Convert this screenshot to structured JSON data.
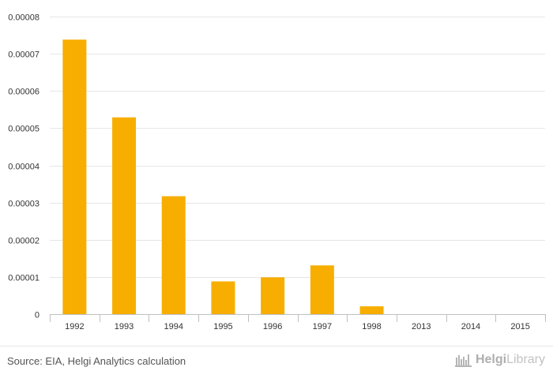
{
  "chart_data": {
    "type": "bar",
    "title": "",
    "xlabel": "",
    "ylabel": "",
    "categories": [
      "1992",
      "1993",
      "1994",
      "1995",
      "1996",
      "1997",
      "1998",
      "2013",
      "2014",
      "2015"
    ],
    "values": [
      7.38e-05,
      5.29e-05,
      3.17e-05,
      8.8e-06,
      9.9e-06,
      1.31e-05,
      2.1e-06,
      0,
      0,
      0
    ],
    "ylim": [
      0,
      8e-05
    ],
    "yticks": [
      "0",
      "0.00001",
      "0.00002",
      "0.00003",
      "0.00004",
      "0.00005",
      "0.00006",
      "0.00007",
      "0.00008"
    ],
    "ytick_values": [
      0,
      1e-05,
      2e-05,
      3e-05,
      4e-05,
      5e-05,
      6e-05,
      7e-05,
      8e-05
    ],
    "grid": true,
    "bar_color": "#f7ae00",
    "grid_color": "#e6e6e6",
    "axis_color": "#c0c0c0"
  },
  "footer": {
    "source": "Source: EIA, Helgi Analytics calculation",
    "logo_bold": "Helgi",
    "logo_light": "Library",
    "logo_color": "#b5b5b5"
  }
}
